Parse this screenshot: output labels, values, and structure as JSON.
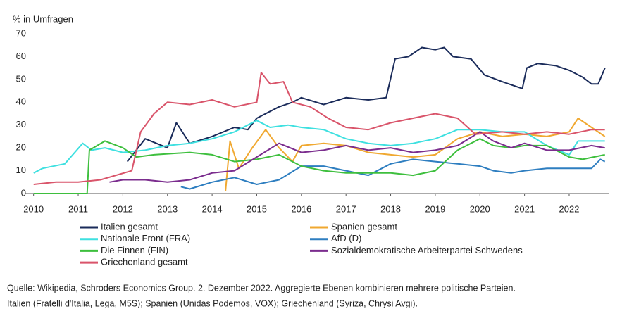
{
  "chart_data": {
    "type": "line",
    "y_label": "% in Umfragen",
    "xlim": [
      2009.8,
      2022.9
    ],
    "xticks": [
      2010,
      2011,
      2012,
      2013,
      2014,
      2015,
      2016,
      2017,
      2018,
      2019,
      2020,
      2021,
      2022
    ],
    "ylim": [
      0,
      70
    ],
    "yticks": [
      0,
      10,
      20,
      30,
      40,
      50,
      60,
      70
    ],
    "grid": false,
    "series": [
      {
        "name": "Italien gesamt",
        "color": "#1a2b5a",
        "x": [
          2012.1,
          2012.5,
          2013,
          2013.2,
          2013.5,
          2014,
          2014.5,
          2014.8,
          2015,
          2015.5,
          2015.8,
          2016,
          2016.5,
          2017,
          2017.5,
          2017.9,
          2018.1,
          2018.4,
          2018.7,
          2019,
          2019.2,
          2019.4,
          2019.8,
          2020.1,
          2020.5,
          2020.8,
          2020.95,
          2021.05,
          2021.3,
          2021.7,
          2022,
          2022.3,
          2022.5,
          2022.65,
          2022.8
        ],
        "values": [
          14,
          24,
          20,
          31,
          22,
          25,
          29,
          28,
          33,
          38,
          40,
          42,
          39,
          42,
          41,
          42,
          59,
          60,
          64,
          63,
          64,
          60,
          59,
          52,
          49,
          47,
          46,
          55,
          57,
          56,
          54,
          51,
          48,
          48,
          55
        ]
      },
      {
        "name": "Spanien gesamt",
        "color": "#f0a830",
        "x": [
          2014.3,
          2014.4,
          2014.6,
          2014.9,
          2015.2,
          2015.5,
          2015.8,
          2016,
          2016.5,
          2017,
          2017.5,
          2018,
          2018.5,
          2019,
          2019.5,
          2020,
          2020.5,
          2021,
          2021.5,
          2022,
          2022.2,
          2022.5,
          2022.8
        ],
        "values": [
          1,
          23,
          11,
          20,
          28,
          20,
          14,
          21,
          22,
          21,
          18,
          17,
          16,
          17,
          24,
          27,
          25,
          26,
          25,
          27,
          33,
          29,
          25
        ]
      },
      {
        "name": "Nationale Front (FRA)",
        "color": "#3ee0e0",
        "x": [
          2010,
          2010.2,
          2010.7,
          2011.1,
          2011.3,
          2011.6,
          2012,
          2012.5,
          2013,
          2013.5,
          2014,
          2014.5,
          2015,
          2015.3,
          2015.7,
          2016,
          2016.5,
          2017,
          2017.5,
          2018,
          2018.5,
          2019,
          2019.5,
          2020,
          2020.5,
          2021,
          2021.5,
          2022,
          2022.2,
          2022.8
        ],
        "values": [
          9,
          11,
          13,
          22,
          19,
          20,
          18,
          19,
          21,
          22,
          24,
          27,
          32,
          29,
          30,
          29,
          28,
          24,
          22,
          21,
          22,
          24,
          28,
          28,
          27,
          27,
          21,
          17,
          23,
          23
        ]
      },
      {
        "name": "AfD (D)",
        "color": "#2e7ec0",
        "x": [
          2013.3,
          2013.5,
          2014,
          2014.5,
          2015,
          2015.5,
          2016,
          2016.5,
          2017,
          2017.5,
          2018,
          2018.5,
          2019,
          2019.5,
          2020,
          2020.3,
          2020.7,
          2021,
          2021.5,
          2022,
          2022.5,
          2022.7,
          2022.8
        ],
        "values": [
          3,
          2,
          5,
          7,
          4,
          6,
          12,
          12,
          10,
          8,
          13,
          15,
          14,
          13,
          12,
          10,
          9,
          10,
          11,
          11,
          11,
          15,
          14
        ]
      },
      {
        "name": "Die Finnen (FIN)",
        "color": "#3ebf3e",
        "x": [
          2010,
          2011.2,
          2011.25,
          2011.6,
          2012,
          2012.3,
          2012.7,
          2013.5,
          2014,
          2014.5,
          2015,
          2015.5,
          2016,
          2016.5,
          2017,
          2017.5,
          2018,
          2018.5,
          2019,
          2019.5,
          2020,
          2020.3,
          2020.7,
          2021,
          2021.5,
          2022,
          2022.3,
          2022.8
        ],
        "values": [
          0,
          0,
          19,
          23,
          20,
          16,
          17,
          18,
          17,
          14,
          15,
          17,
          12,
          10,
          9,
          9,
          9,
          8,
          10,
          19,
          24,
          21,
          20,
          21,
          21,
          16,
          15,
          17
        ]
      },
      {
        "name": "Sozialdemokratische Arbeiterpartei Schwedens",
        "color": "#7b2d8e",
        "x": [
          2011.7,
          2012,
          2012.5,
          2013,
          2013.5,
          2014,
          2014.5,
          2015,
          2015.5,
          2016,
          2016.5,
          2017,
          2017.5,
          2018,
          2018.5,
          2019,
          2019.5,
          2020,
          2020.3,
          2020.7,
          2021,
          2021.5,
          2022,
          2022.5,
          2022.8
        ],
        "values": [
          5,
          6,
          6,
          5,
          6,
          9,
          10,
          16,
          22,
          18,
          19,
          21,
          19,
          20,
          18,
          19,
          21,
          27,
          23,
          20,
          22,
          19,
          19,
          21,
          20
        ]
      },
      {
        "name": "Griechenland gesamt",
        "color": "#d9546a",
        "x": [
          2010,
          2010.5,
          2011,
          2011.5,
          2012.2,
          2012.4,
          2012.7,
          2013,
          2013.5,
          2014,
          2014.5,
          2015,
          2015.1,
          2015.3,
          2015.6,
          2015.8,
          2016.2,
          2016.6,
          2017,
          2017.5,
          2018,
          2018.5,
          2019,
          2019.5,
          2019.9,
          2020.5,
          2021,
          2021.5,
          2022,
          2022.5,
          2022.8
        ],
        "values": [
          4,
          5,
          5,
          6,
          10,
          27,
          35,
          40,
          39,
          41,
          38,
          40,
          53,
          48,
          49,
          40,
          38,
          33,
          29,
          28,
          31,
          33,
          35,
          33,
          26,
          27,
          26,
          27,
          26,
          28,
          28
        ]
      }
    ],
    "note": [
      "Quelle: Wikipedia, Schroders Economics Group. 2. Dezember 2022. Aggregierte Ebenen kombinieren mehrere politische Parteien.",
      "Italien (Fratelli d'Italia, Lega, M5S); Spanien (Unidas Podemos, VOX); Griechenland (Syriza, Chrysi Avgi)."
    ]
  }
}
